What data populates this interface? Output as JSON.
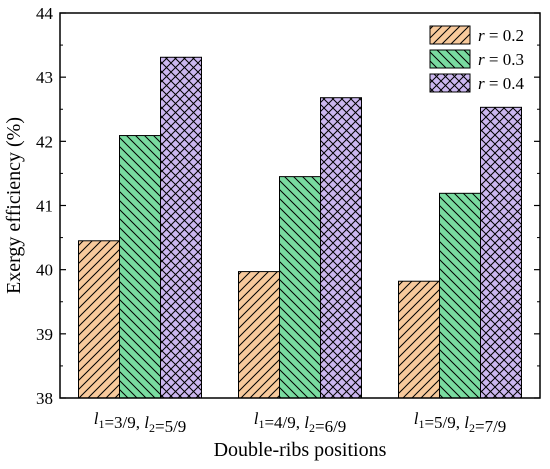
{
  "chart_data": {
    "type": "bar",
    "xlabel": "Double-ribs positions",
    "ylabel": "Exergy efficiency (%)",
    "ylim": [
      38,
      44
    ],
    "yticks": [
      38,
      39,
      40,
      41,
      42,
      43,
      44
    ],
    "grid": false,
    "legend_position": "top-right",
    "categories": [
      {
        "l1": "3/9",
        "l2": "5/9",
        "sep": ", "
      },
      {
        "l1": "4/9",
        "l2": "6/9",
        "sep": ", "
      },
      {
        "l1": "5/9",
        "l2": "7/9",
        "sep": ", "
      }
    ],
    "category_var1": "l",
    "category_sub1": "1",
    "category_var2": "l",
    "category_sub2": "2",
    "series": [
      {
        "name_var": "r",
        "name_rest": " = 0.2",
        "values": [
          40.45,
          39.97,
          39.82
        ],
        "color": "#f7c99c",
        "pattern": "diagonal-down"
      },
      {
        "name_var": "r",
        "name_rest": " = 0.3",
        "values": [
          42.09,
          41.45,
          41.19
        ],
        "color": "#79dba0",
        "pattern": "diagonal-up"
      },
      {
        "name_var": "r",
        "name_rest": " = 0.4",
        "values": [
          43.31,
          42.68,
          42.53
        ],
        "color": "#cbb7ef",
        "pattern": "crosshatch"
      }
    ]
  }
}
